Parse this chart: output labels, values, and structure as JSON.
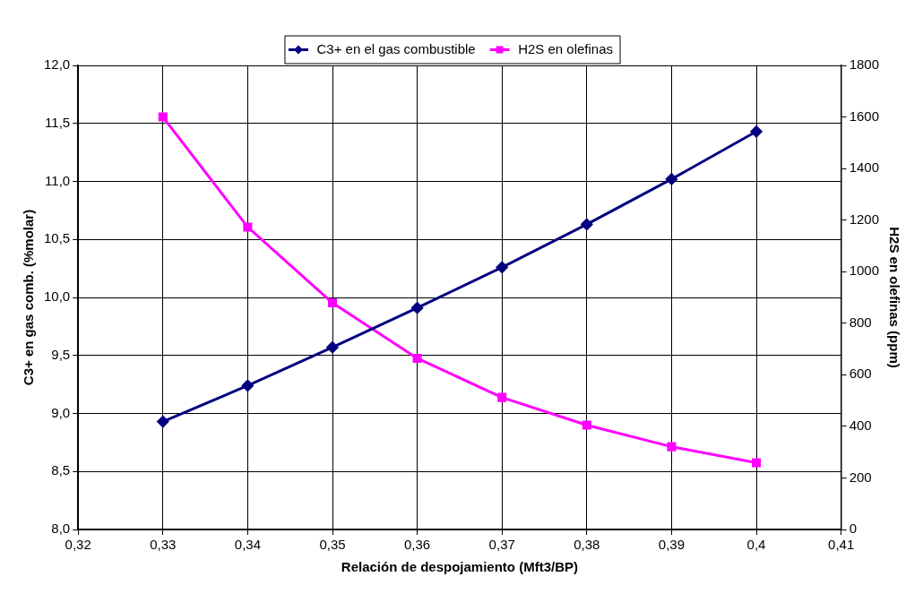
{
  "chart_data": {
    "type": "line",
    "xlabel": "Relación de despojamiento (Mft3/BP)",
    "ylabel": "C3+ en gas comb. (%molar)",
    "y2label": "H2S en olefinas (ppm)",
    "x": [
      0.33,
      0.34,
      0.35,
      0.36,
      0.37,
      0.38,
      0.39,
      0.4
    ],
    "xlim": [
      0.32,
      0.41
    ],
    "xticks": [
      {
        "value": 0.32,
        "label": "0,32"
      },
      {
        "value": 0.33,
        "label": "0,33"
      },
      {
        "value": 0.34,
        "label": "0,34"
      },
      {
        "value": 0.35,
        "label": "0,35"
      },
      {
        "value": 0.36,
        "label": "0,36"
      },
      {
        "value": 0.37,
        "label": "0,37"
      },
      {
        "value": 0.38,
        "label": "0,38"
      },
      {
        "value": 0.39,
        "label": "0,39"
      },
      {
        "value": 0.4,
        "label": "0,4"
      },
      {
        "value": 0.41,
        "label": "0,41"
      }
    ],
    "ylim": [
      8,
      12
    ],
    "yticks": [
      {
        "value": 8,
        "label": "8,0"
      },
      {
        "value": 8.5,
        "label": "8,5"
      },
      {
        "value": 9,
        "label": "9,0"
      },
      {
        "value": 9.5,
        "label": "9,5"
      },
      {
        "value": 10,
        "label": "10,0"
      },
      {
        "value": 10.5,
        "label": "10,5"
      },
      {
        "value": 11,
        "label": "11,0"
      },
      {
        "value": 11.5,
        "label": "11,5"
      },
      {
        "value": 12,
        "label": "12,0"
      }
    ],
    "y2lim": [
      0,
      1800
    ],
    "y2ticks": [
      0,
      200,
      400,
      600,
      800,
      1000,
      1200,
      1400,
      1600,
      1800
    ],
    "series": [
      {
        "name": "C3+ en el gas combustible",
        "color": "#000080",
        "marker": "diamond",
        "values": [
          8.93,
          9.24,
          9.57,
          9.91,
          10.26,
          10.63,
          11.02,
          11.43
        ]
      },
      {
        "name": "H2S en olefinas",
        "color": "#ff00ff",
        "marker": "square",
        "axis": "y2",
        "values": [
          1600,
          1173,
          879,
          664,
          512,
          405,
          321,
          259
        ]
      }
    ],
    "grid": true,
    "legend": "top",
    "line_style": "solid"
  }
}
